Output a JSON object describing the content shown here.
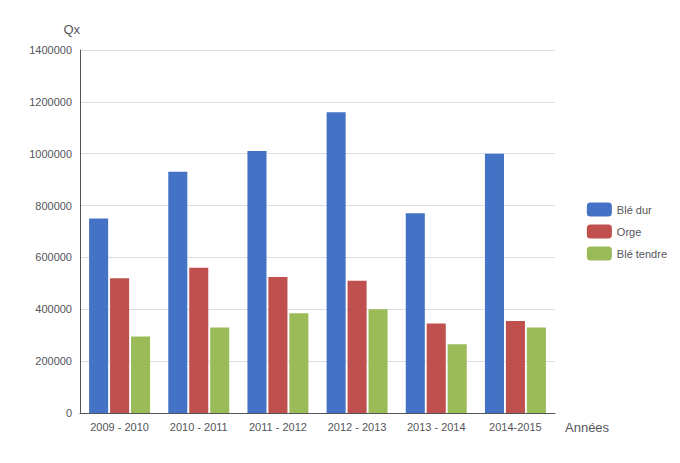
{
  "chart_data": {
    "type": "bar",
    "categories": [
      "2009 - 2010",
      "2010 - 2011",
      "2011 - 2012",
      "2012 - 2013",
      "2013 - 2014",
      "2014-2015"
    ],
    "series": [
      {
        "name": "Blé dur",
        "color": "#4472C4",
        "values": [
          750000,
          930000,
          1010000,
          1160000,
          770000,
          1000000
        ]
      },
      {
        "name": "Orge",
        "color": "#C0504D",
        "values": [
          520000,
          560000,
          525000,
          510000,
          345000,
          355000
        ]
      },
      {
        "name": "Blé tendre",
        "color": "#9BBB59",
        "values": [
          295000,
          330000,
          385000,
          400000,
          265000,
          330000
        ]
      }
    ],
    "ylabel": "Qx",
    "xlabel": "Années",
    "ylim": [
      0,
      1400000
    ],
    "yticks": [
      0,
      200000,
      400000,
      600000,
      800000,
      1000000,
      1200000,
      1400000
    ],
    "grid": true,
    "legend": "right"
  }
}
